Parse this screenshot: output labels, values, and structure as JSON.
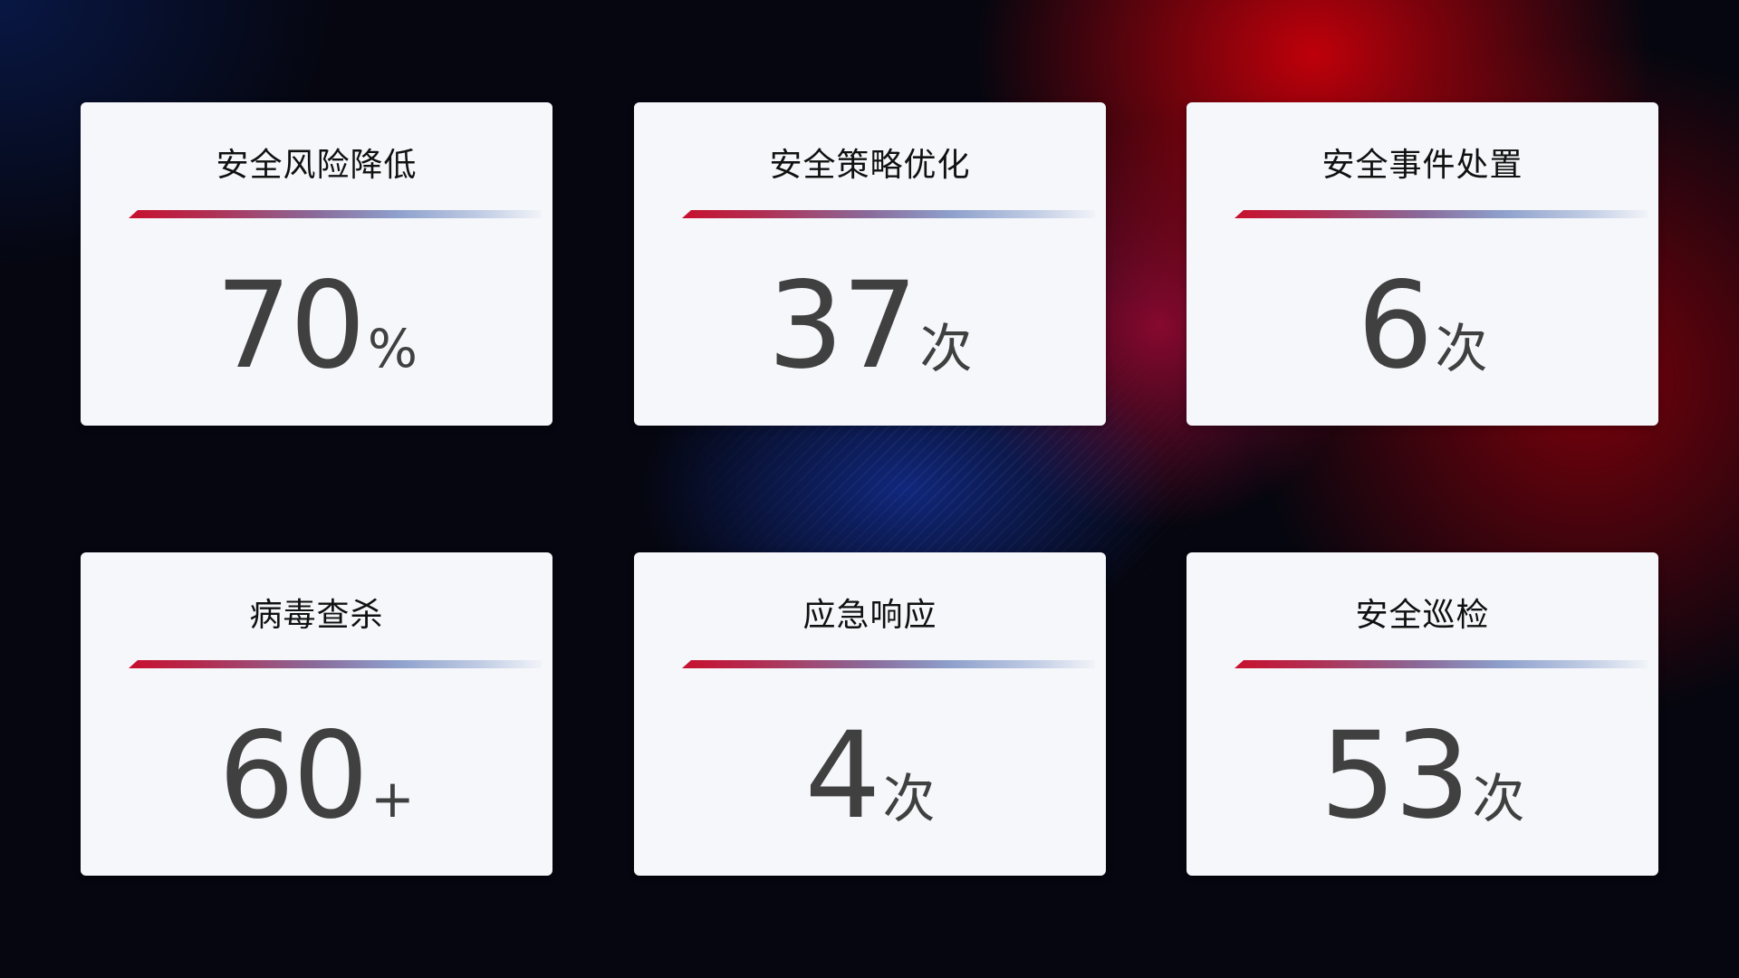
{
  "cards": [
    {
      "title": "安全风险降低",
      "value": "70",
      "unit": "%"
    },
    {
      "title": "安全策略优化",
      "value": "37",
      "unit": "次"
    },
    {
      "title": "安全事件处置",
      "value": "6",
      "unit": "次"
    },
    {
      "title": "病毒查杀",
      "value": "60",
      "unit": "+"
    },
    {
      "title": "应急响应",
      "value": "4",
      "unit": "次"
    },
    {
      "title": "安全巡检",
      "value": "53",
      "unit": "次"
    }
  ],
  "colors": {
    "accent_red": "#c8102e",
    "accent_blue": "#8ea0cc",
    "value_text": "#404040",
    "card_bg": "#f6f7fb"
  }
}
